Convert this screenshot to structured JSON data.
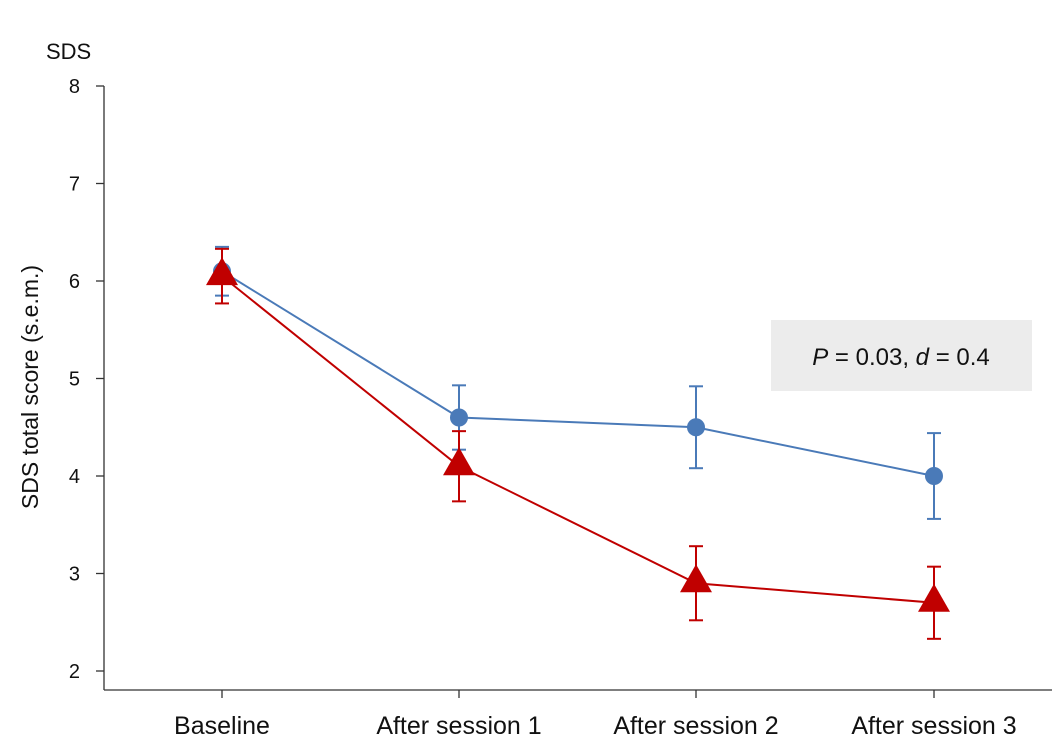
{
  "chart_data": {
    "type": "line",
    "title": "SDS",
    "xlabel": "",
    "ylabel": "SDS total score (s.e.m.)",
    "ylim": [
      2,
      8
    ],
    "yticks": [
      2,
      3,
      4,
      5,
      6,
      7,
      8
    ],
    "categories": [
      "Baseline",
      "After session 1",
      "After session 2",
      "After session 3"
    ],
    "grid": false,
    "annotation": {
      "p_symbol": "P",
      "p_text": " = 0.03, ",
      "d_symbol": "d",
      "d_text": " = 0.4",
      "background": "#ececec"
    },
    "series": [
      {
        "marker": "circle",
        "color": "#4a7ab8",
        "values": [
          6.1,
          4.6,
          4.5,
          4.0
        ],
        "error": [
          0.25,
          0.33,
          0.42,
          0.44
        ]
      },
      {
        "marker": "triangle",
        "color": "#c00000",
        "values": [
          6.05,
          4.1,
          2.9,
          2.7
        ],
        "error": [
          0.28,
          0.36,
          0.38,
          0.37
        ]
      }
    ]
  }
}
